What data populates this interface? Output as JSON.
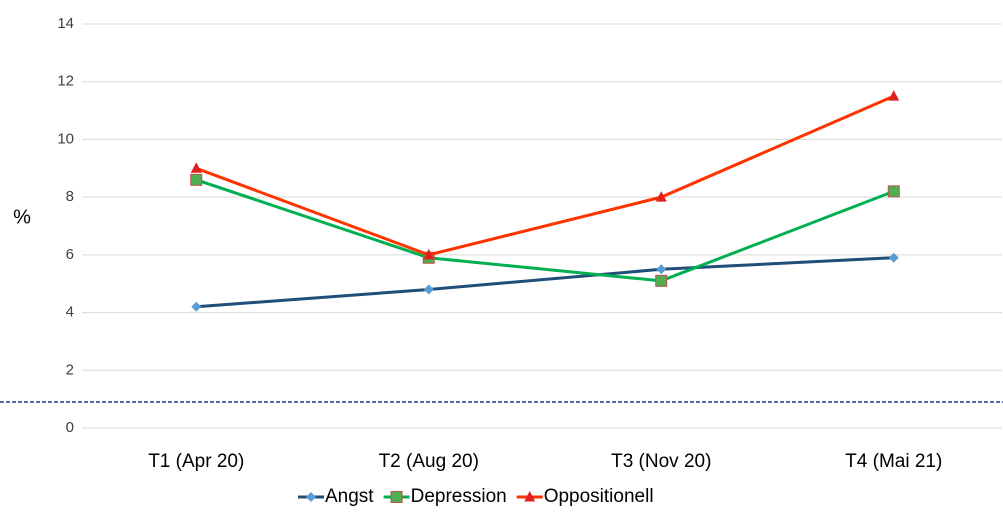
{
  "chart_data": {
    "type": "line",
    "y_label": "%",
    "categories": [
      "T1 (Apr 20)",
      "T2 (Aug 20)",
      "T3 (Nov 20)",
      "T4 (Mai 21)"
    ],
    "series": [
      {
        "name": "Angst",
        "color": "#1f4e79",
        "marker_color": "#5b9bd5",
        "marker": "diamond",
        "values": [
          4.2,
          4.8,
          5.5,
          5.9
        ]
      },
      {
        "name": "Depression",
        "color": "#00b050",
        "marker_color": "#4caf50",
        "marker": "square",
        "values": [
          8.6,
          5.9,
          5.1,
          8.2
        ]
      },
      {
        "name": "Oppositionell",
        "color": "#ff3300",
        "marker_color": "#e02020",
        "marker": "triangle",
        "values": [
          9.0,
          6.0,
          8.0,
          11.5
        ]
      }
    ],
    "reference_line": {
      "value": 0.9,
      "color": "#1f3c88"
    },
    "ylim": [
      0,
      14
    ],
    "yticks": [
      0,
      2,
      4,
      6,
      8,
      10,
      12,
      14
    ],
    "grid": true,
    "legend": "bottom"
  }
}
